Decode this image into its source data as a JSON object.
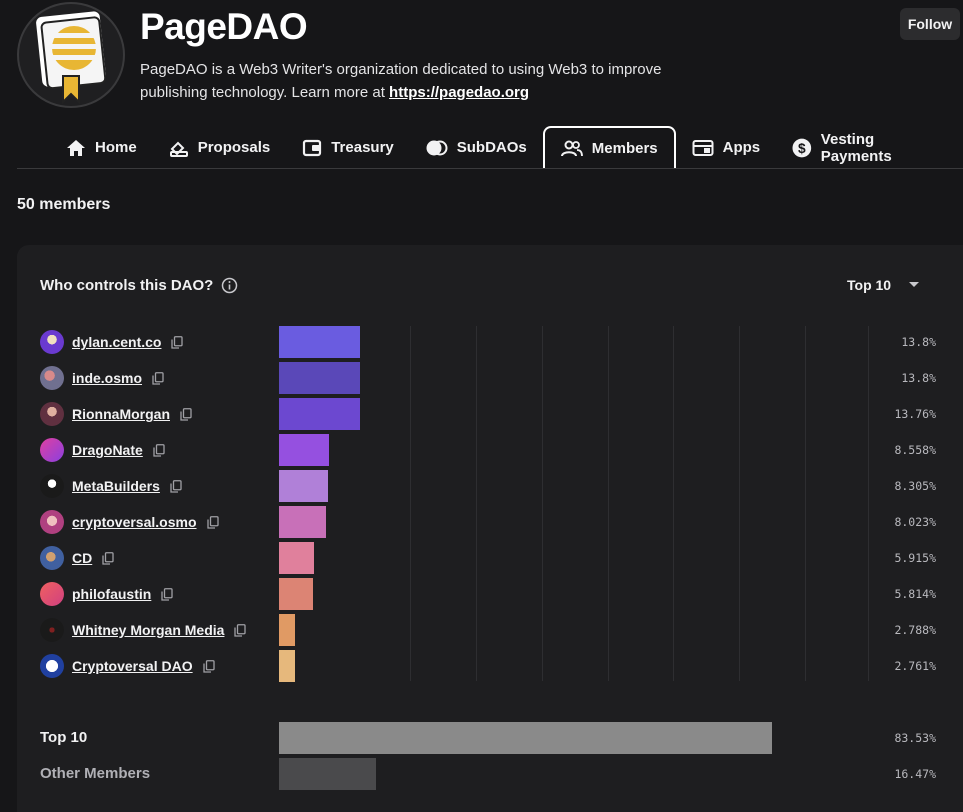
{
  "header": {
    "title": "PageDAO",
    "description": "PageDAO is a Web3 Writer's organization dedicated to using Web3 to improve publishing technology. Learn more at ",
    "link": "https://pagedao.org",
    "follow_label": "Follow"
  },
  "tabs": [
    {
      "label": "Home",
      "icon": "home-icon"
    },
    {
      "label": "Proposals",
      "icon": "proposals-icon"
    },
    {
      "label": "Treasury",
      "icon": "treasury-icon"
    },
    {
      "label": "SubDAOs",
      "icon": "subdaos-icon"
    },
    {
      "label": "Members",
      "icon": "members-icon",
      "active": true
    },
    {
      "label": "Apps",
      "icon": "apps-icon"
    },
    {
      "label": "Vesting Payments",
      "icon": "dollar-icon"
    }
  ],
  "member_count": "50 members",
  "panel": {
    "title": "Who controls this DAO?",
    "select_value": "Top 10"
  },
  "members": [
    {
      "name": "dylan.cent.co",
      "pct_label": "13.8%",
      "value": 13.8,
      "color": "#6a5ce0"
    },
    {
      "name": "inde.osmo",
      "pct_label": "13.8%",
      "value": 13.8,
      "color": "#5a48b8"
    },
    {
      "name": "RionnaMorgan",
      "pct_label": "13.76%",
      "value": 13.76,
      "color": "#6c48d0"
    },
    {
      "name": "DragoNate",
      "pct_label": "8.558%",
      "value": 8.558,
      "color": "#9550e0"
    },
    {
      "name": "MetaBuilders",
      "pct_label": "8.305%",
      "value": 8.305,
      "color": "#b080d8"
    },
    {
      "name": "cryptoversal.osmo",
      "pct_label": "8.023%",
      "value": 8.023,
      "color": "#c870b8"
    },
    {
      "name": "CD",
      "pct_label": "5.915%",
      "value": 5.915,
      "color": "#e0809c"
    },
    {
      "name": "philofaustin",
      "pct_label": "5.814%",
      "value": 5.814,
      "color": "#dc8474"
    },
    {
      "name": "Whitney Morgan Media",
      "pct_label": "2.788%",
      "value": 2.788,
      "color": "#e09a64"
    },
    {
      "name": "Cryptoversal DAO",
      "pct_label": "2.761%",
      "value": 2.761,
      "color": "#e6b87c"
    }
  ],
  "summary": [
    {
      "label": "Top 10",
      "pct_label": "83.53%",
      "value": 83.53,
      "color": "#8a8a8a"
    },
    {
      "label": "Other Members",
      "pct_label": "16.47%",
      "value": 16.47,
      "color": "#4a4a4c"
    }
  ],
  "accent_colors": {
    "background": "#161618",
    "card": "#1e1e20"
  }
}
